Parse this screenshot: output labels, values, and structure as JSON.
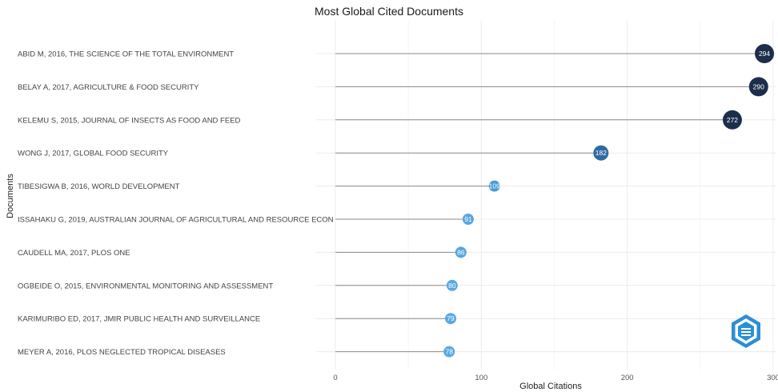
{
  "chart_data": {
    "type": "lollipop",
    "title": "Most Global Cited Documents",
    "xlabel": "Global Citations",
    "ylabel": "Documents",
    "xlim": [
      0,
      300
    ],
    "xticks": [
      0,
      100,
      200,
      300
    ],
    "grid": true,
    "categories": [
      "ABID M, 2016, THE SCIENCE OF THE TOTAL ENVIRONMENT",
      "BELAY A, 2017, AGRICULTURE & FOOD SECURITY",
      "KELEMU S, 2015, JOURNAL OF INSECTS AS FOOD AND FEED",
      "WONG J, 2017, GLOBAL FOOD SECURITY",
      "TIBESIGWA B, 2016, WORLD DEVELOPMENT",
      "ISSAHAKU G, 2019, AUSTRALIAN JOURNAL OF AGRICULTURAL AND RESOURCE ECON",
      "CAUDELL MA, 2017, PLOS ONE",
      "OGBEIDE O, 2015, ENVIRONMENTAL MONITORING AND ASSESSMENT",
      "KARIMURIBO ED, 2017, JMIR PUBLIC HEALTH AND SURVEILLANCE",
      "MEYER A, 2016, PLOS NEGLECTED TROPICAL DISEASES"
    ],
    "values": [
      294,
      290,
      272,
      182,
      109,
      91,
      86,
      80,
      79,
      78
    ],
    "colors": [
      "#1c2e4a",
      "#1c2e4a",
      "#1c2e4a",
      "#2f6aa3",
      "#4a9ad8",
      "#56a5e0",
      "#56a5e0",
      "#5aa8e2",
      "#5aa8e2",
      "#5aa8e2"
    ]
  },
  "logo": {
    "name": "bibliometrix-logo-icon",
    "color": "#2b8fd6"
  }
}
